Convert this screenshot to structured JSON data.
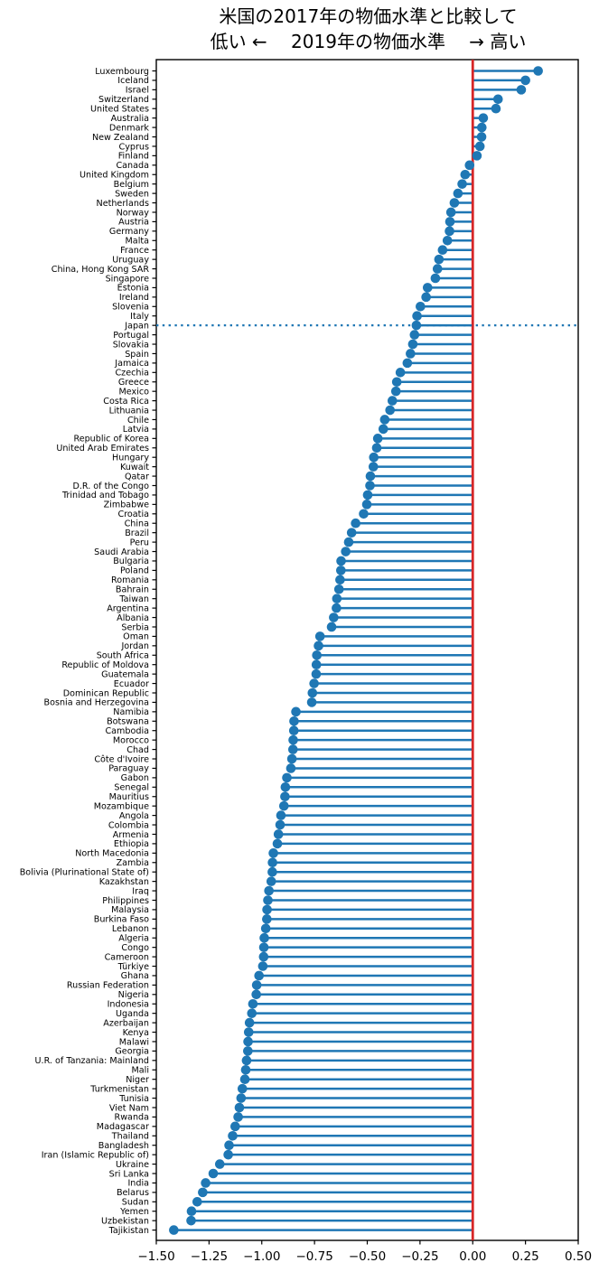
{
  "chart_data": {
    "type": "lollipop",
    "orientation": "horizontal",
    "title": "米国の2017年の物価水準と比較して",
    "subtitle": "低い ←　 2019年の物価水準 　→ 高い",
    "xlabel": "",
    "ylabel": "",
    "xlim": [
      -1.5,
      0.5
    ],
    "xticks": [
      -1.5,
      -1.25,
      -1.0,
      -0.75,
      -0.5,
      -0.25,
      0.0,
      0.25,
      0.5
    ],
    "xtick_labels": [
      "−1.50",
      "−1.25",
      "−1.00",
      "−0.75",
      "−0.50",
      "−0.25",
      "0.00",
      "0.25",
      "0.50"
    ],
    "baseline": 0.0,
    "grid": false,
    "legend": "none",
    "reference_country": "Japan",
    "reference_line_style": "dotted",
    "colors": {
      "stem": "#1f77b4",
      "dot": "#1f77b4",
      "zero_line": "#d62728",
      "reference_line": "#1f77b4",
      "frame": "#000000"
    },
    "categories": [
      "Luxembourg",
      "Iceland",
      "Israel",
      "Switzerland",
      "United States",
      "Australia",
      "Denmark",
      "New Zealand",
      "Cyprus",
      "Finland",
      "Canada",
      "United Kingdom",
      "Belgium",
      "Sweden",
      "Netherlands",
      "Norway",
      "Austria",
      "Germany",
      "Malta",
      "France",
      "Uruguay",
      "China, Hong Kong SAR",
      "Singapore",
      "Estonia",
      "Ireland",
      "Slovenia",
      "Italy",
      "Japan",
      "Portugal",
      "Slovakia",
      "Spain",
      "Jamaica",
      "Czechia",
      "Greece",
      "Mexico",
      "Costa Rica",
      "Lithuania",
      "Chile",
      "Latvia",
      "Republic of Korea",
      "United Arab Emirates",
      "Hungary",
      "Kuwait",
      "Qatar",
      "D.R. of the Congo",
      "Trinidad and Tobago",
      "Zimbabwe",
      "Croatia",
      "China",
      "Brazil",
      "Peru",
      "Saudi Arabia",
      "Bulgaria",
      "Poland",
      "Romania",
      "Bahrain",
      "Taiwan",
      "Argentina",
      "Albania",
      "Serbia",
      "Oman",
      "Jordan",
      "South Africa",
      "Republic of Moldova",
      "Guatemala",
      "Ecuador",
      "Dominican Republic",
      "Bosnia and Herzegovina",
      "Namibia",
      "Botswana",
      "Cambodia",
      "Morocco",
      "Chad",
      "Côte d'Ivoire",
      "Paraguay",
      "Gabon",
      "Senegal",
      "Mauritius",
      "Mozambique",
      "Angola",
      "Colombia",
      "Armenia",
      "Ethiopia",
      "North Macedonia",
      "Zambia",
      "Bolivia (Plurinational State of)",
      "Kazakhstan",
      "Iraq",
      "Philippines",
      "Malaysia",
      "Burkina Faso",
      "Lebanon",
      "Algeria",
      "Congo",
      "Cameroon",
      "Türkiye",
      "Ghana",
      "Russian Federation",
      "Nigeria",
      "Indonesia",
      "Uganda",
      "Azerbaijan",
      "Kenya",
      "Malawi",
      "Georgia",
      "U.R. of Tanzania: Mainland",
      "Mali",
      "Niger",
      "Turkmenistan",
      "Tunisia",
      "Viet Nam",
      "Rwanda",
      "Madagascar",
      "Thailand",
      "Bangladesh",
      "Iran (Islamic Republic of)",
      "Ukraine",
      "Sri Lanka",
      "India",
      "Belarus",
      "Sudan",
      "Yemen",
      "Uzbekistan",
      "Tajikistan"
    ],
    "values": [
      0.31,
      0.25,
      0.23,
      0.12,
      0.11,
      0.05,
      0.043,
      0.042,
      0.034,
      0.02,
      -0.015,
      -0.036,
      -0.05,
      -0.07,
      -0.087,
      -0.103,
      -0.108,
      -0.11,
      -0.12,
      -0.143,
      -0.16,
      -0.167,
      -0.177,
      -0.214,
      -0.221,
      -0.248,
      -0.264,
      -0.267,
      -0.276,
      -0.284,
      -0.295,
      -0.31,
      -0.343,
      -0.36,
      -0.364,
      -0.381,
      -0.392,
      -0.417,
      -0.424,
      -0.45,
      -0.455,
      -0.469,
      -0.471,
      -0.485,
      -0.487,
      -0.498,
      -0.502,
      -0.517,
      -0.555,
      -0.574,
      -0.588,
      -0.602,
      -0.624,
      -0.625,
      -0.629,
      -0.634,
      -0.644,
      -0.646,
      -0.659,
      -0.669,
      -0.724,
      -0.731,
      -0.739,
      -0.741,
      -0.742,
      -0.752,
      -0.76,
      -0.763,
      -0.838,
      -0.847,
      -0.848,
      -0.851,
      -0.852,
      -0.857,
      -0.862,
      -0.881,
      -0.888,
      -0.89,
      -0.895,
      -0.909,
      -0.913,
      -0.921,
      -0.926,
      -0.945,
      -0.949,
      -0.95,
      -0.955,
      -0.966,
      -0.971,
      -0.975,
      -0.976,
      -0.981,
      -0.988,
      -0.99,
      -0.991,
      -0.995,
      -1.013,
      -1.024,
      -1.026,
      -1.042,
      -1.047,
      -1.058,
      -1.062,
      -1.065,
      -1.066,
      -1.072,
      -1.076,
      -1.08,
      -1.092,
      -1.098,
      -1.106,
      -1.112,
      -1.126,
      -1.138,
      -1.155,
      -1.159,
      -1.199,
      -1.23,
      -1.266,
      -1.28,
      -1.306,
      -1.333,
      -1.335,
      -1.417
    ]
  }
}
